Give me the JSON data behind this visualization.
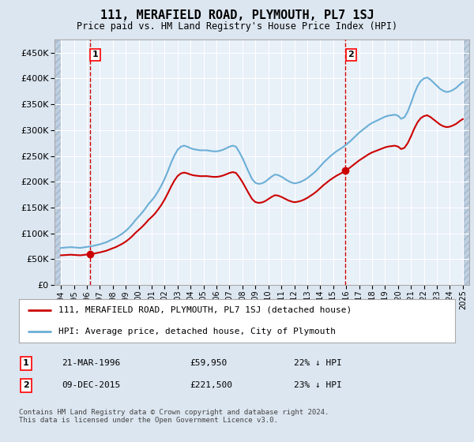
{
  "title": "111, MERAFIELD ROAD, PLYMOUTH, PL7 1SJ",
  "subtitle": "Price paid vs. HM Land Registry's House Price Index (HPI)",
  "hpi_label": "HPI: Average price, detached house, City of Plymouth",
  "property_label": "111, MERAFIELD ROAD, PLYMOUTH, PL7 1SJ (detached house)",
  "footer": "Contains HM Land Registry data © Crown copyright and database right 2024.\nThis data is licensed under the Open Government Licence v3.0.",
  "sale1_date": "21-MAR-1996",
  "sale1_price": 59950,
  "sale1_note": "22% ↓ HPI",
  "sale2_date": "09-DEC-2015",
  "sale2_price": 221500,
  "sale2_note": "23% ↓ HPI",
  "sale1_year": 1996.22,
  "sale2_year": 2015.94,
  "ylim": [
    0,
    475000
  ],
  "yticks": [
    0,
    50000,
    100000,
    150000,
    200000,
    250000,
    300000,
    350000,
    400000,
    450000
  ],
  "bg_color": "#dce6f0",
  "plot_bg_color": "#e8f0f8",
  "hatch_color": "#c0cfe0",
  "grid_color": "#ffffff",
  "hpi_color": "#6baed6",
  "property_color": "#cc0000",
  "vline_color": "#cc0000",
  "marker_color": "#cc0000",
  "xlim_left": 1993.5,
  "xlim_right": 2025.5,
  "hpi_years": [
    1994,
    1994.25,
    1994.5,
    1994.75,
    1995,
    1995.25,
    1995.5,
    1995.75,
    1996,
    1996.25,
    1996.5,
    1996.75,
    1997,
    1997.25,
    1997.5,
    1997.75,
    1998,
    1998.25,
    1998.5,
    1998.75,
    1999,
    1999.25,
    1999.5,
    1999.75,
    2000,
    2000.25,
    2000.5,
    2000.75,
    2001,
    2001.25,
    2001.5,
    2001.75,
    2002,
    2002.25,
    2002.5,
    2002.75,
    2003,
    2003.25,
    2003.5,
    2003.75,
    2004,
    2004.25,
    2004.5,
    2004.75,
    2005,
    2005.25,
    2005.5,
    2005.75,
    2006,
    2006.25,
    2006.5,
    2006.75,
    2007,
    2007.25,
    2007.5,
    2007.75,
    2008,
    2008.25,
    2008.5,
    2008.75,
    2009,
    2009.25,
    2009.5,
    2009.75,
    2010,
    2010.25,
    2010.5,
    2010.75,
    2011,
    2011.25,
    2011.5,
    2011.75,
    2012,
    2012.25,
    2012.5,
    2012.75,
    2013,
    2013.25,
    2013.5,
    2013.75,
    2014,
    2014.25,
    2014.5,
    2014.75,
    2015,
    2015.25,
    2015.5,
    2015.75,
    2016,
    2016.25,
    2016.5,
    2016.75,
    2017,
    2017.25,
    2017.5,
    2017.75,
    2018,
    2018.25,
    2018.5,
    2018.75,
    2019,
    2019.25,
    2019.5,
    2019.75,
    2020,
    2020.25,
    2020.5,
    2020.75,
    2021,
    2021.25,
    2021.5,
    2021.75,
    2022,
    2022.25,
    2022.5,
    2022.75,
    2023,
    2023.25,
    2023.5,
    2023.75,
    2024,
    2024.25,
    2024.5,
    2024.75,
    2025
  ],
  "hpi_values": [
    72000,
    72500,
    73000,
    73500,
    73000,
    72500,
    72000,
    73000,
    74000,
    75000,
    76000,
    77500,
    79000,
    81000,
    83000,
    86000,
    89000,
    92000,
    96000,
    100000,
    105000,
    111000,
    118000,
    126000,
    133000,
    140000,
    148000,
    157000,
    164000,
    172000,
    182000,
    193000,
    206000,
    221000,
    237000,
    251000,
    262000,
    268000,
    270000,
    268000,
    265000,
    263000,
    262000,
    261000,
    261000,
    261000,
    260000,
    259000,
    259000,
    260000,
    262000,
    265000,
    268000,
    270000,
    268000,
    258000,
    246000,
    232000,
    218000,
    205000,
    198000,
    196000,
    197000,
    200000,
    205000,
    210000,
    214000,
    213000,
    210000,
    206000,
    202000,
    199000,
    197000,
    198000,
    200000,
    203000,
    207000,
    212000,
    217000,
    223000,
    230000,
    237000,
    243000,
    249000,
    254000,
    259000,
    263000,
    267000,
    272000,
    277000,
    283000,
    289000,
    295000,
    300000,
    305000,
    310000,
    314000,
    317000,
    320000,
    323000,
    326000,
    328000,
    329000,
    330000,
    328000,
    322000,
    325000,
    336000,
    352000,
    370000,
    385000,
    395000,
    400000,
    402000,
    398000,
    392000,
    386000,
    380000,
    376000,
    374000,
    375000,
    378000,
    382000,
    388000,
    393000
  ]
}
